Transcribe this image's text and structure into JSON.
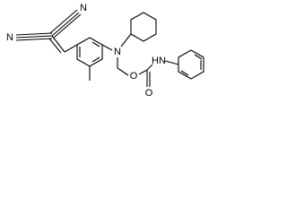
{
  "atoms": [
    {
      "label": "N"
    },
    {
      "label": "N"
    },
    {
      "label": "N"
    },
    {
      "label": "O"
    },
    {
      "label": "HN"
    },
    {
      "label": "O"
    }
  ]
}
